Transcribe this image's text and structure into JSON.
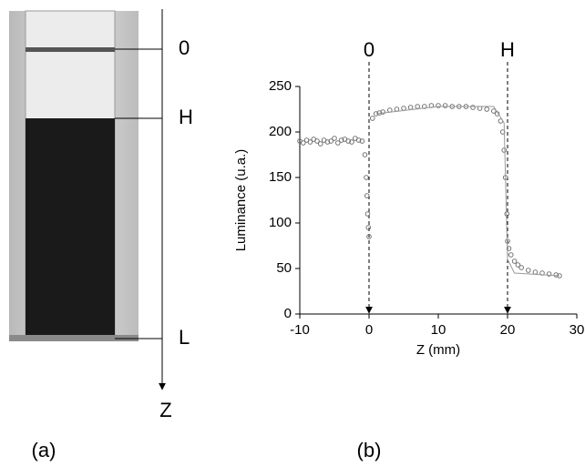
{
  "figure": {
    "photo_labels": [
      "0",
      "H",
      "L"
    ],
    "photo_axis_label": "Z",
    "panel_labels": [
      "(a)",
      "(b)"
    ]
  },
  "chart_data": {
    "type": "scatter",
    "x_label": "Z (mm)",
    "y_label": "Luminance (u.a.)",
    "xlim": [
      -10,
      30
    ],
    "xticks": [
      -10,
      0,
      10,
      20,
      30
    ],
    "ylim": [
      0,
      250
    ],
    "yticks": [
      0,
      50,
      100,
      150,
      200,
      250
    ],
    "markers": [
      {
        "x": 0,
        "label": "0"
      },
      {
        "x": 20,
        "label": "H"
      }
    ],
    "series": [
      {
        "style": "markers",
        "color": "#666666",
        "x": [
          -10,
          -9.5,
          -9,
          -8.5,
          -8,
          -7.5,
          -7,
          -6.5,
          -6,
          -5.5,
          -5,
          -4.5,
          -4,
          -3.5,
          -3,
          -2.5,
          -2,
          -1.5,
          -1,
          -0.6,
          -0.4,
          -0.3,
          -0.2,
          -0.1,
          0,
          0.5,
          1,
          1.5,
          2,
          3,
          4,
          5,
          6,
          7,
          8,
          9,
          10,
          11,
          12,
          13,
          14,
          15,
          16,
          17,
          18,
          18.5,
          19,
          19.3,
          19.5,
          19.7,
          19.9,
          20,
          20.2,
          20.5,
          21,
          21.5,
          22,
          23,
          24,
          25,
          26,
          27,
          27.5
        ],
        "values": [
          190,
          188,
          191,
          189,
          192,
          190,
          187,
          191,
          189,
          190,
          193,
          188,
          191,
          192,
          190,
          189,
          193,
          191,
          190,
          175,
          150,
          130,
          110,
          95,
          85,
          215,
          220,
          221,
          222,
          224,
          225,
          226,
          227,
          228,
          228,
          229,
          229,
          229,
          228,
          228,
          228,
          227,
          226,
          225,
          223,
          220,
          212,
          200,
          180,
          150,
          110,
          80,
          72,
          65,
          58,
          54,
          51,
          48,
          46,
          45,
          44,
          43,
          42
        ]
      },
      {
        "style": "line",
        "color": "#999999",
        "x": [
          1,
          10,
          18,
          19.5,
          20,
          21,
          27.5
        ],
        "values": [
          220,
          228,
          228,
          210,
          60,
          45,
          42
        ]
      }
    ]
  }
}
